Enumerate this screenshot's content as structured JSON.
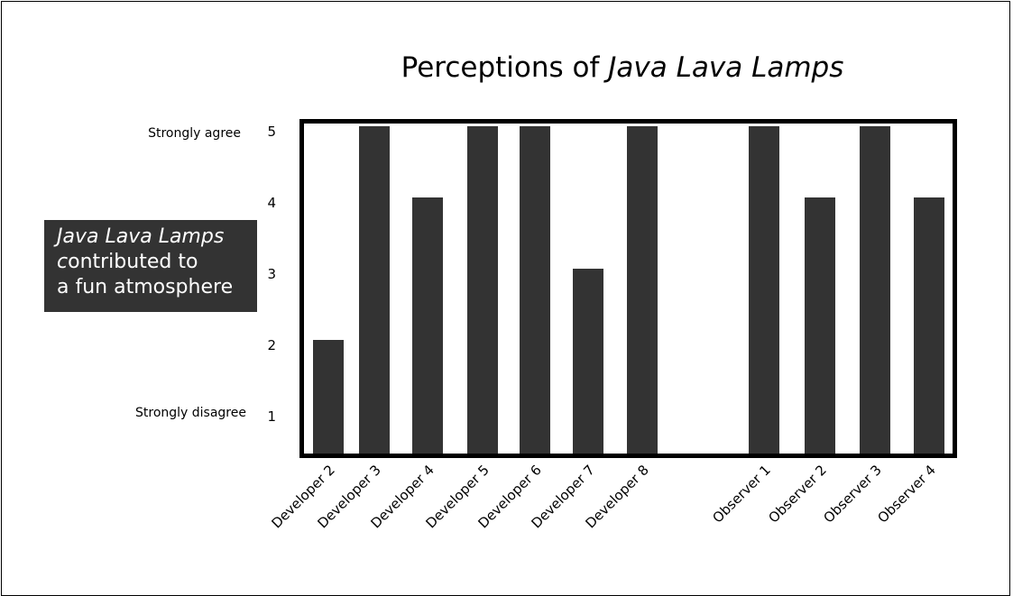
{
  "chart_data": {
    "type": "bar",
    "title_parts": [
      {
        "text": "Perceptions of ",
        "italic": false
      },
      {
        "text": "Java Lava Lamps",
        "italic": true
      }
    ],
    "ylabel_lines": [
      [
        {
          "text": "Java Lava Lamps",
          "italic": true
        }
      ],
      [
        {
          "text": "c",
          "italic": true
        },
        {
          "text": "ontributed to",
          "italic": false
        }
      ],
      [
        {
          "text": "a fun atmosphere",
          "italic": false
        }
      ]
    ],
    "y_ticks": [
      1,
      2,
      3,
      4,
      5
    ],
    "y_tick_labels": [
      "1",
      "2",
      "3",
      "4",
      "5"
    ],
    "scale_anchor_labels": {
      "high": "Strongly agree",
      "low": "Strongly disagree"
    },
    "ylim": [
      0.6,
      5.0
    ],
    "categories": [
      "Developer 2",
      "Developer 3",
      "Developer 4",
      "Developer 5",
      "Developer 6",
      "Developer 7",
      "Developer 8",
      "Observer 1",
      "Observer 2",
      "Observer 3",
      "Observer 4"
    ],
    "values": [
      2,
      5,
      4,
      5,
      5,
      3,
      5,
      5,
      4,
      5,
      4
    ],
    "groups": [
      "Developer",
      "Developer",
      "Developer",
      "Developer",
      "Developer",
      "Developer",
      "Developer",
      "Observer",
      "Observer",
      "Observer",
      "Observer"
    ],
    "grid": false,
    "bar_color": "#333333"
  }
}
